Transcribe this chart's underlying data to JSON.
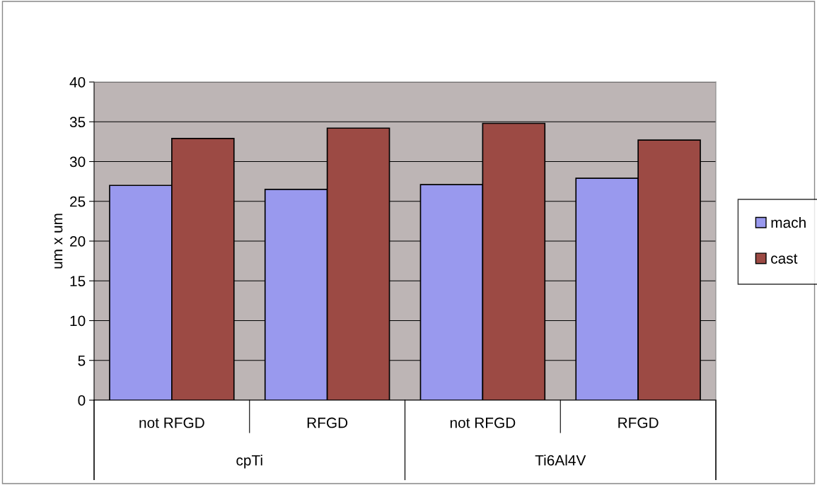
{
  "chart_data": {
    "type": "bar",
    "ylabel": "um x um",
    "categories": [
      "not RFGD",
      "RFGD",
      "not RFGD",
      "RFGD"
    ],
    "annotations": [
      "cpTi",
      "Ti6Al4V"
    ],
    "series": [
      {
        "name": "mach",
        "color": "#9999ee",
        "values": [
          27.0,
          26.5,
          27.1,
          27.9
        ]
      },
      {
        "name": "cast",
        "color": "#9c4a44",
        "values": [
          32.9,
          34.2,
          34.8,
          32.7
        ]
      }
    ],
    "ylim": [
      0,
      40
    ],
    "yticks": [
      0,
      5,
      10,
      15,
      20,
      25,
      30,
      35,
      40
    ],
    "grid": "y",
    "legend": "right"
  }
}
